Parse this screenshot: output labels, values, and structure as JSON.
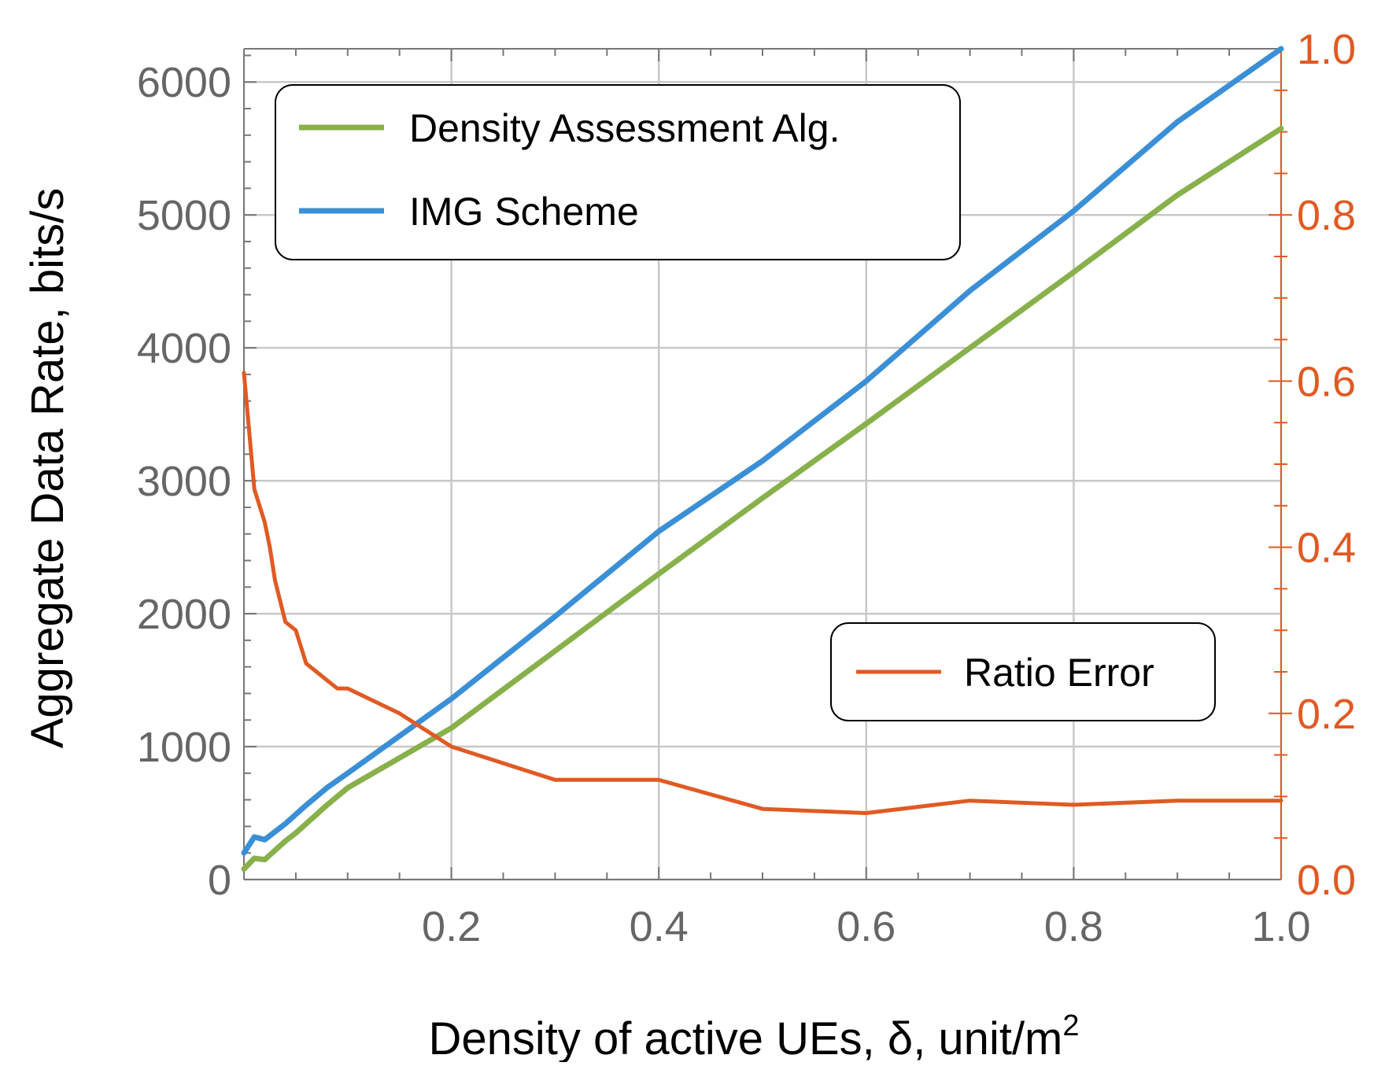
{
  "chart_data": {
    "type": "line",
    "title": "",
    "xlabel": "Density of active UEs, δ, unit/m",
    "xlabel_superscript": "2",
    "ylabel": "Aggregate Data Rate, bits/s",
    "y2label": "",
    "xlim": [
      0.0,
      1.0
    ],
    "ylim": [
      0,
      6250
    ],
    "y2lim": [
      0.0,
      1.0
    ],
    "grid": true,
    "x_ticks": [
      0.2,
      0.4,
      0.6,
      0.8,
      1.0
    ],
    "x_tick_labels": [
      "0.2",
      "0.4",
      "0.6",
      "0.8",
      "1.0"
    ],
    "y_ticks": [
      0,
      1000,
      2000,
      3000,
      4000,
      5000,
      6000
    ],
    "y_tick_labels": [
      "0",
      "1000",
      "2000",
      "3000",
      "4000",
      "5000",
      "6000"
    ],
    "y2_ticks": [
      0.0,
      0.2,
      0.4,
      0.6,
      0.8,
      1.0
    ],
    "y2_tick_labels": [
      "0.0",
      "0.2",
      "0.4",
      "0.6",
      "0.8",
      "1.0"
    ],
    "series": [
      {
        "name": "Density Assessment Alg.",
        "axis": "left",
        "color": "#88b04b",
        "x": [
          0.0,
          0.01,
          0.02,
          0.03,
          0.04,
          0.05,
          0.06,
          0.08,
          0.1,
          0.2,
          0.3,
          0.4,
          0.5,
          0.6,
          0.7,
          0.8,
          0.9,
          1.0
        ],
        "y": [
          80,
          160,
          150,
          220,
          290,
          350,
          420,
          560,
          690,
          1140,
          1720,
          2300,
          2870,
          3430,
          4000,
          4570,
          5150,
          5650
        ]
      },
      {
        "name": "IMG Scheme",
        "axis": "left",
        "color": "#3a8fd6",
        "x": [
          0.0,
          0.01,
          0.02,
          0.03,
          0.04,
          0.05,
          0.06,
          0.08,
          0.1,
          0.2,
          0.3,
          0.4,
          0.5,
          0.6,
          0.7,
          0.8,
          0.9,
          1.0
        ],
        "y": [
          200,
          320,
          300,
          360,
          420,
          490,
          560,
          690,
          800,
          1360,
          1980,
          2620,
          3150,
          3750,
          4430,
          5030,
          5700,
          6250
        ]
      },
      {
        "name": "Ratio Error",
        "axis": "right",
        "color": "#e05a23",
        "x": [
          0.0,
          0.005,
          0.01,
          0.02,
          0.025,
          0.03,
          0.04,
          0.05,
          0.06,
          0.07,
          0.08,
          0.09,
          0.1,
          0.15,
          0.2,
          0.3,
          0.4,
          0.5,
          0.6,
          0.7,
          0.8,
          0.9,
          1.0
        ],
        "y": [
          0.61,
          0.54,
          0.47,
          0.43,
          0.4,
          0.36,
          0.31,
          0.3,
          0.26,
          0.25,
          0.24,
          0.23,
          0.23,
          0.2,
          0.16,
          0.12,
          0.12,
          0.085,
          0.08,
          0.095,
          0.09,
          0.095,
          0.095
        ]
      }
    ],
    "legend_labels": {
      "density": "Density Assessment Alg.",
      "img": "IMG Scheme",
      "ratio": "Ratio Error"
    }
  }
}
